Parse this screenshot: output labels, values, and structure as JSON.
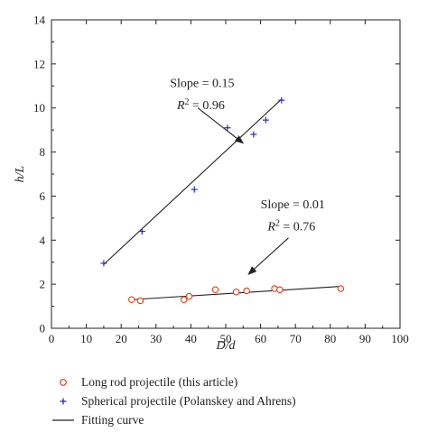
{
  "chart_data": {
    "type": "scatter",
    "xlabel": "D/d",
    "ylabel": "h/L",
    "xlim": [
      0,
      100
    ],
    "ylim": [
      0,
      14
    ],
    "xticks": [
      0,
      10,
      20,
      30,
      40,
      50,
      60,
      70,
      80,
      90,
      100
    ],
    "yticks": [
      0,
      2,
      4,
      6,
      8,
      10,
      12,
      14
    ],
    "grid": false,
    "legend_position": "bottom",
    "series": [
      {
        "name": "Long rod projectile (this article)",
        "marker": "open-circle",
        "color": "#e0401a",
        "points": [
          {
            "x": 23,
            "y": 1.3
          },
          {
            "x": 25.5,
            "y": 1.25
          },
          {
            "x": 38,
            "y": 1.3
          },
          {
            "x": 39.5,
            "y": 1.45
          },
          {
            "x": 47,
            "y": 1.75
          },
          {
            "x": 53,
            "y": 1.65
          },
          {
            "x": 56,
            "y": 1.7
          },
          {
            "x": 64,
            "y": 1.8
          },
          {
            "x": 65.5,
            "y": 1.75
          },
          {
            "x": 83,
            "y": 1.8
          }
        ],
        "fit": {
          "x": [
            23,
            83
          ],
          "y": [
            1.3,
            1.9
          ]
        }
      },
      {
        "name": "Spherical projectile (Polanskey and Ahrens)",
        "marker": "plus",
        "color": "#2b2fae",
        "points": [
          {
            "x": 15,
            "y": 2.95
          },
          {
            "x": 26,
            "y": 4.4
          },
          {
            "x": 41,
            "y": 6.3
          },
          {
            "x": 50.5,
            "y": 9.1
          },
          {
            "x": 58,
            "y": 8.8
          },
          {
            "x": 61.5,
            "y": 9.45
          },
          {
            "x": 66,
            "y": 10.35
          }
        ],
        "fit": {
          "x": [
            15,
            66
          ],
          "y": [
            2.9,
            10.4
          ]
        }
      }
    ],
    "fit_legend": "Fitting curve",
    "annotations": [
      {
        "line1": "Slope = 0.15",
        "line2_prefix": "R",
        "line2_sup": "2",
        "line2_suffix": " = 0.96",
        "arrow_from": [
          42,
          10.0
        ],
        "arrow_to": [
          55,
          8.4
        ]
      },
      {
        "line1": "Slope = 0.01",
        "line2_prefix": "R",
        "line2_sup": "2",
        "line2_suffix": " = 0.76",
        "arrow_from": [
          68,
          4.1
        ],
        "arrow_to": [
          56.5,
          2.45
        ]
      }
    ],
    "text_positions": [
      [
        34,
        10.95
      ],
      [
        36,
        9.95
      ],
      [
        60,
        5.45
      ],
      [
        62,
        4.45
      ]
    ]
  }
}
